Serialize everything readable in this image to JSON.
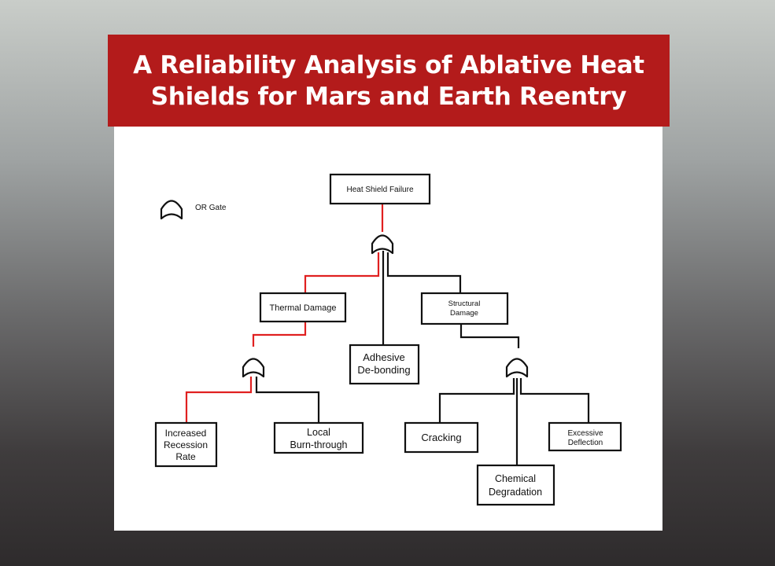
{
  "title": {
    "line1": "A Reliability Analysis of Ablative Heat",
    "line2": "Shields for Mars and Earth Reentry"
  },
  "legend": {
    "label": "OR Gate"
  },
  "nodes": {
    "top": "Heat Shield Failure",
    "thermal": "Thermal Damage",
    "structural_line1": "Structural",
    "structural_line2": "Damage",
    "adhesive_line1": "Adhesive",
    "adhesive_line2": "De-bonding",
    "recession_line1": "Increased",
    "recession_line2": "Recession",
    "recession_line3": "Rate",
    "burn_line1": "Local",
    "burn_line2": "Burn-through",
    "cracking": "Cracking",
    "deflection_line1": "Excessive",
    "deflection_line2": "Deflection",
    "chemical_line1": "Chemical",
    "chemical_line2": "Degradation"
  },
  "colors": {
    "banner": "#b31b1b",
    "critical_path": "#e02020",
    "line": "#111111"
  }
}
